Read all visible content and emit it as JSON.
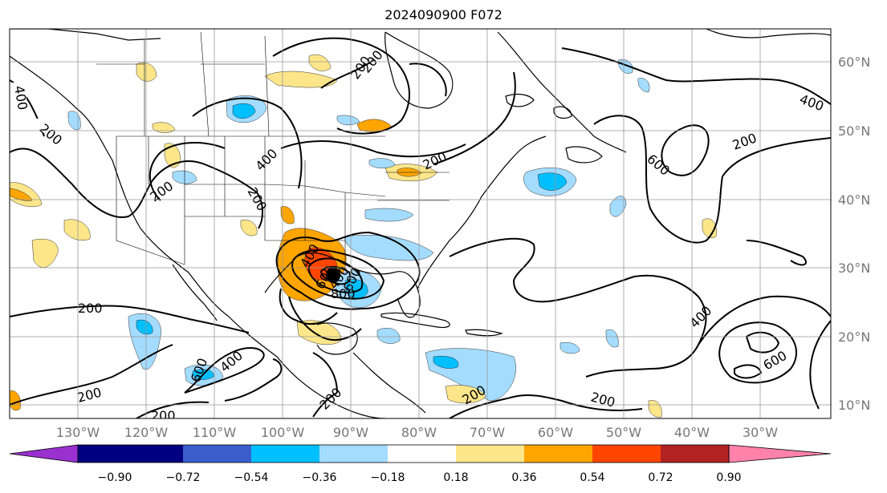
{
  "title": "2024090900 F072",
  "longitude_labels": [
    "130°W",
    "120°W",
    "110°W",
    "100°W",
    "90°W",
    "80°W",
    "70°W",
    "60°W",
    "50°W",
    "40°W",
    "30°W"
  ],
  "latitude_labels": [
    "60°N",
    "50°N",
    "40°N",
    "30°N",
    "20°N",
    "10°N"
  ],
  "contour_labels": [
    "400",
    "200",
    "200",
    "400",
    "200",
    "200",
    "200",
    "400",
    "200",
    "400",
    "600",
    "200",
    "600",
    "400",
    "200",
    "200",
    "200",
    "200",
    "400",
    "800",
    "600",
    "600",
    "400",
    "600",
    "200",
    "200"
  ],
  "colorbar": {
    "ticks": [
      "−0.90",
      "−0.72",
      "−0.54",
      "−0.36",
      "−0.18",
      "0.18",
      "0.36",
      "0.54",
      "0.72",
      "0.90"
    ],
    "colors": [
      "#9b30d0",
      "#000080",
      "#3a5fcd",
      "#00bfff",
      "#a4dcff",
      "#ffffff",
      "#fde68a",
      "#ffa500",
      "#ff4500",
      "#b22222",
      "#ff82ab"
    ]
  },
  "colors": {
    "neg_strong": "#00bfff",
    "neg_light": "#a4dcff",
    "pos_light": "#fde68a",
    "pos_mid": "#ffa500",
    "pos_strong": "#ff4500"
  }
}
